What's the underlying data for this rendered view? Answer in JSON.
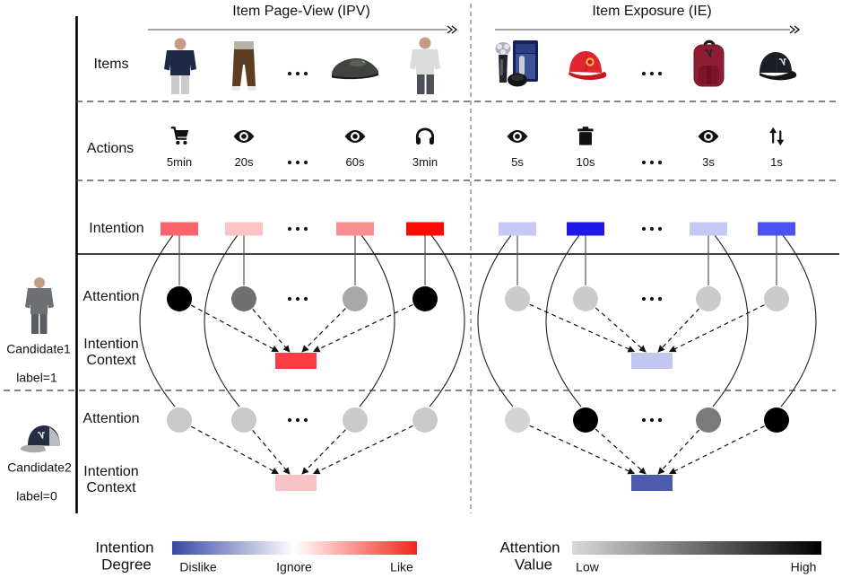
{
  "sections": {
    "ipv": {
      "title": "Item Page-View (IPV)",
      "columns": [
        {
          "item": "navy-sweatshirt",
          "action": {
            "icon": "cart-icon",
            "duration": "5min"
          },
          "intention_color": "#f8656c",
          "cand1_attention_color": "#000000",
          "cand2_attention_color": "#c9c9c9"
        },
        {
          "item": "brown-pants",
          "action": {
            "icon": "eye-icon",
            "duration": "20s"
          },
          "intention_color": "#fbc5c5",
          "cand1_attention_color": "#6f6f6f",
          "cand2_attention_color": "#c9c9c9"
        },
        {
          "ellipsis": true
        },
        {
          "item": "black-shoe",
          "action": {
            "icon": "eye-icon",
            "duration": "60s"
          },
          "intention_color": "#fa8f90",
          "cand1_attention_color": "#a8a8a8",
          "cand2_attention_color": "#c9c9c9"
        },
        {
          "item": "gray-sweatshirt",
          "action": {
            "icon": "headphones-icon",
            "duration": "3min"
          },
          "intention_color": "#fb0a06",
          "cand1_attention_color": "#000000",
          "cand2_attention_color": "#c9c9c9"
        }
      ],
      "cand1_context_color": "#fb3d45",
      "cand2_context_color": "#f7c3c6"
    },
    "ie": {
      "title": "Item Exposure (IE)",
      "columns": [
        {
          "item": "shaver-set",
          "action": {
            "icon": "eye-icon",
            "duration": "5s"
          },
          "intention_color": "#c5c9f4",
          "cand1_attention_color": "#cbcbcb",
          "cand2_attention_color": "#d4d4d4"
        },
        {
          "item": "red-cap",
          "action": {
            "icon": "trash-icon",
            "duration": "10s"
          },
          "intention_color": "#1d19e9",
          "cand1_attention_color": "#cbcbcb",
          "cand2_attention_color": "#000000"
        },
        {
          "ellipsis": true
        },
        {
          "item": "maroon-backpack",
          "action": {
            "icon": "eye-icon",
            "duration": "3s"
          },
          "intention_color": "#c4c9f6",
          "cand1_attention_color": "#cbcbcb",
          "cand2_attention_color": "#7a7a7a"
        },
        {
          "item": "black-cap",
          "action": {
            "icon": "swap-arrows-icon",
            "duration": "1s"
          },
          "intention_color": "#4a52ef",
          "cand1_attention_color": "#cbcbcb",
          "cand2_attention_color": "#000000"
        }
      ],
      "cand1_context_color": "#c4c6f2",
      "cand2_context_color": "#4d5bac"
    }
  },
  "row_labels": {
    "items": "Items",
    "actions": "Actions",
    "intention": "Intention",
    "attention": "Attention",
    "intention_context_line1": "Intention",
    "intention_context_line2": "Context"
  },
  "candidates": [
    {
      "name": "Candidate1",
      "label": "label=1",
      "item": "gray-jacket-person"
    },
    {
      "name": "Candidate2",
      "label": "label=0",
      "item": "navy-gray-cap"
    }
  ],
  "legend": {
    "intention": {
      "title_line1": "Intention",
      "title_line2": "Degree",
      "min_label": "Dislike",
      "mid_label": "Ignore",
      "max_label": "Like",
      "gradient": [
        "#3747a5",
        "#ffffff",
        "#f2251c"
      ]
    },
    "attention": {
      "title_line1": "Attention",
      "title_line2": "Value",
      "min_label": "Low",
      "max_label": "High",
      "gradient": [
        "#d9d9d9",
        "#000000"
      ]
    }
  }
}
